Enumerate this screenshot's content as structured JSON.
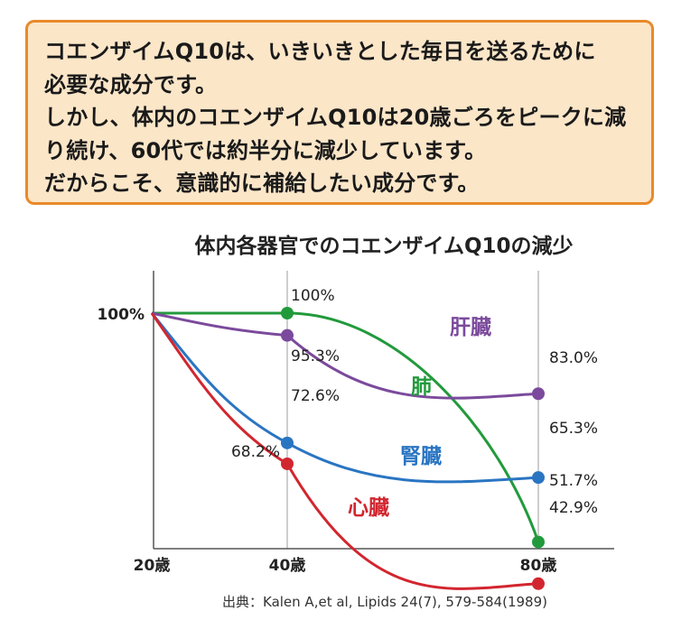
{
  "note": {
    "lines": [
      "コエンザイムQ10は、いきいきとした毎日を送るために",
      "必要な成分です。",
      "しかし、体内のコエンザイムQ10は20歳ごろをピークに減",
      "り続け、60代では約半分に減少しています。",
      "だからこそ、意識的に補給したい成分です。"
    ]
  },
  "chart_data": {
    "type": "line",
    "title": "体内各器官でのコエンザイムQ10の減少",
    "x_ticks": [
      "20歳",
      "40歳",
      "80歳"
    ],
    "x": [
      20,
      40,
      80
    ],
    "y_tick": "100%",
    "ylim": [
      0,
      100
    ],
    "grid": true,
    "series": [
      {
        "name": "肺",
        "color": "#229a3c",
        "values": [
          100,
          100,
          51.7
        ],
        "labels": [
          "",
          "100%",
          "51.7%"
        ]
      },
      {
        "name": "肝臓",
        "color": "#7b4a9c",
        "values": [
          100,
          95.3,
          83.0
        ],
        "labels": [
          "",
          "95.3%",
          "83.0%"
        ]
      },
      {
        "name": "腎臓",
        "color": "#2a75c2",
        "values": [
          100,
          72.6,
          65.3
        ],
        "labels": [
          "",
          "72.6%",
          "65.3%"
        ]
      },
      {
        "name": "心臓",
        "color": "#d2262f",
        "values": [
          100,
          68.2,
          42.9
        ],
        "labels": [
          "",
          "68.2%",
          "42.9%"
        ]
      }
    ],
    "source": "出典：Kalen A,et al, Lipids 24(7), 579-584(1989)"
  }
}
